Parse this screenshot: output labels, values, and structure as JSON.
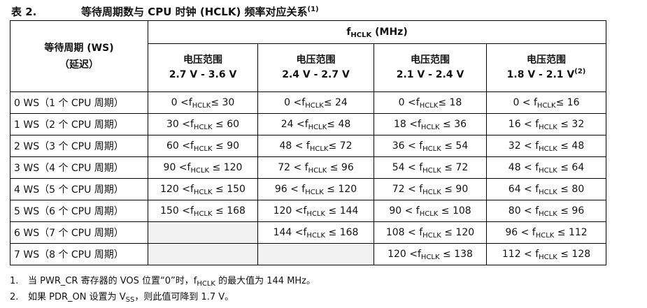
{
  "caption": {
    "number": "表 2.",
    "title": "等待周期数与 CPU 时钟 (HCLK) 频率对应关系",
    "footnote_ref": "(1)"
  },
  "header": {
    "ws_col": [
      "等待周期 (WS)",
      "（延迟）"
    ],
    "freq": {
      "prefix": "f",
      "sub": "HCLK",
      "unit": " (MHz)"
    },
    "voltage_label": "电压范围",
    "ranges": [
      {
        "range": "2.7 V - 3.6 V",
        "sup": ""
      },
      {
        "range": "2.4 V - 2.7 V",
        "sup": ""
      },
      {
        "range": "2.1 V - 2.4 V",
        "sup": ""
      },
      {
        "range": "1.8 V - 2.1 V",
        "sup": "(2)"
      }
    ]
  },
  "rows": [
    {
      "ws": "0 WS（1 个 CPU 周期）",
      "cells": [
        {
          "pre": "0 <f",
          "post": "≤ 30"
        },
        {
          "pre": "0 <f",
          "post": "≤ 24"
        },
        {
          "pre": "0 <f",
          "post": "≤ 18"
        },
        {
          "pre": "0 < f",
          "post": "≤ 16"
        }
      ]
    },
    {
      "ws": "1 WS（2 个 CPU 周期）",
      "cells": [
        {
          "pre": "30 <f",
          "post": " ≤ 60"
        },
        {
          "pre": "24 <f",
          "post": "≤ 48"
        },
        {
          "pre": "18 <f",
          "post": " ≤ 36"
        },
        {
          "pre": "16 < f",
          "post": " ≤ 32"
        }
      ]
    },
    {
      "ws": "2 WS（3 个 CPU 周期）",
      "cells": [
        {
          "pre": "60 <f",
          "post": " ≤ 90"
        },
        {
          "pre": "48 < f",
          "post": "≤ 72"
        },
        {
          "pre": "36 < f",
          "post": " ≤ 54"
        },
        {
          "pre": "32 < f",
          "post": " ≤ 48"
        }
      ]
    },
    {
      "ws": "3 WS（4 个 CPU 周期）",
      "cells": [
        {
          "pre": "90 <f",
          "post": " ≤ 120"
        },
        {
          "pre": "72 < f",
          "post": " ≤ 96"
        },
        {
          "pre": "54 < f",
          "post": " ≤ 72"
        },
        {
          "pre": "48 < f",
          "post": " ≤ 64"
        }
      ]
    },
    {
      "ws": "4 WS（5 个 CPU 周期）",
      "cells": [
        {
          "pre": "120 <f",
          "post": " ≤ 150"
        },
        {
          "pre": "96 < f",
          "post": " ≤ 120"
        },
        {
          "pre": "72 < f",
          "post": " ≤ 90"
        },
        {
          "pre": "64 < f",
          "post": " ≤ 80"
        }
      ]
    },
    {
      "ws": "5 WS（6 个 CPU 周期）",
      "cells": [
        {
          "pre": "150 <f",
          "post": " ≤ 168"
        },
        {
          "pre": "120 <f",
          "post": " ≤ 144"
        },
        {
          "pre": "90 < f",
          "post": " ≤ 108"
        },
        {
          "pre": "80 < f",
          "post": " ≤ 96"
        }
      ]
    },
    {
      "ws": "6 WS（7 个 CPU 周期）",
      "cells": [
        null,
        {
          "pre": "144 <f",
          "post": " ≤ 168"
        },
        {
          "pre": "108 < f",
          "post": " ≤ 120"
        },
        {
          "pre": "96 < f",
          "post": " ≤ 112"
        }
      ]
    },
    {
      "ws": "7 WS（8 个 CPU 周期）",
      "cells": [
        null,
        null,
        {
          "pre": "120 <f",
          "post": " ≤ 138"
        },
        {
          "pre": "112 < f",
          "post": " ≤ 128"
        }
      ]
    }
  ],
  "cell_sub": "HCLK",
  "notes": [
    {
      "num": "1.",
      "pre": "当 PWR_CR 寄存器的 VOS 位置“0”时，f",
      "sub": "HCLK",
      "post": " 的最大值为 144 MHz。"
    },
    {
      "num": "2.",
      "pre": "如果 PDR_ON 设置为 V",
      "sub": "SS",
      "post": "，则此值可降到 1.7 V。"
    }
  ]
}
